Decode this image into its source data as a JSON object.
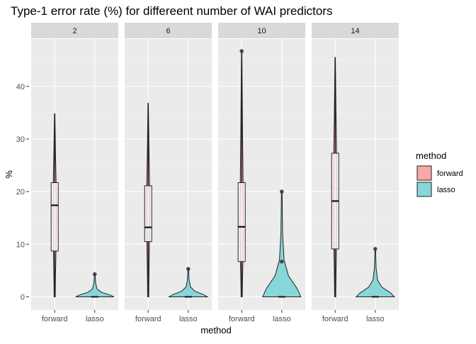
{
  "chart_data": {
    "type": "violin",
    "title": "Type-1 error rate (%) for differeent number of WAI predictors",
    "xlabel": "method",
    "ylabel": "%",
    "ylim": [
      -2.5,
      49
    ],
    "yticks": [
      0,
      10,
      20,
      30,
      40
    ],
    "categories": [
      "forward",
      "lasso"
    ],
    "facets": [
      {
        "label": "2",
        "groups": [
          {
            "method": "forward",
            "min": 0,
            "max": 34.8,
            "q1": 8.7,
            "median": 17.4,
            "q3": 21.7,
            "outliers": []
          },
          {
            "method": "lasso",
            "min": 0,
            "max": 4.3,
            "q1": 0,
            "median": 0,
            "q3": 0,
            "outliers": [
              4.3
            ]
          }
        ]
      },
      {
        "label": "6",
        "groups": [
          {
            "method": "forward",
            "min": 0,
            "max": 36.8,
            "q1": 10.5,
            "median": 13.2,
            "q3": 21.1,
            "outliers": []
          },
          {
            "method": "lasso",
            "min": 0,
            "max": 5.3,
            "q1": 0,
            "median": 0,
            "q3": 0,
            "outliers": [
              5.3
            ]
          }
        ]
      },
      {
        "label": "10",
        "groups": [
          {
            "method": "forward",
            "min": 0,
            "max": 46.7,
            "q1": 6.7,
            "median": 13.3,
            "q3": 21.7,
            "outliers": [
              46.7
            ]
          },
          {
            "method": "lasso",
            "min": 0,
            "max": 20.0,
            "q1": 0,
            "median": 0,
            "q3": 0,
            "outliers": [
              6.7,
              20.0
            ]
          }
        ]
      },
      {
        "label": "14",
        "groups": [
          {
            "method": "forward",
            "min": 0,
            "max": 45.5,
            "q1": 9.1,
            "median": 18.2,
            "q3": 27.3,
            "outliers": []
          },
          {
            "method": "lasso",
            "min": 0,
            "max": 9.1,
            "q1": 0,
            "median": 0,
            "q3": 0,
            "outliers": [
              9.1
            ]
          }
        ]
      }
    ],
    "legend": {
      "title": "method",
      "position": "right",
      "items": [
        {
          "label": "forward",
          "color": "#F8A9A6"
        },
        {
          "label": "lasso",
          "color": "#86D6DA"
        }
      ]
    },
    "colors": {
      "panel_bg": "#EBEBEB",
      "strip_bg": "#D9D9D9",
      "grid": "#FFFFFF",
      "forward": "#F8A9A6",
      "lasso": "#86D6DA"
    },
    "grid": true
  }
}
